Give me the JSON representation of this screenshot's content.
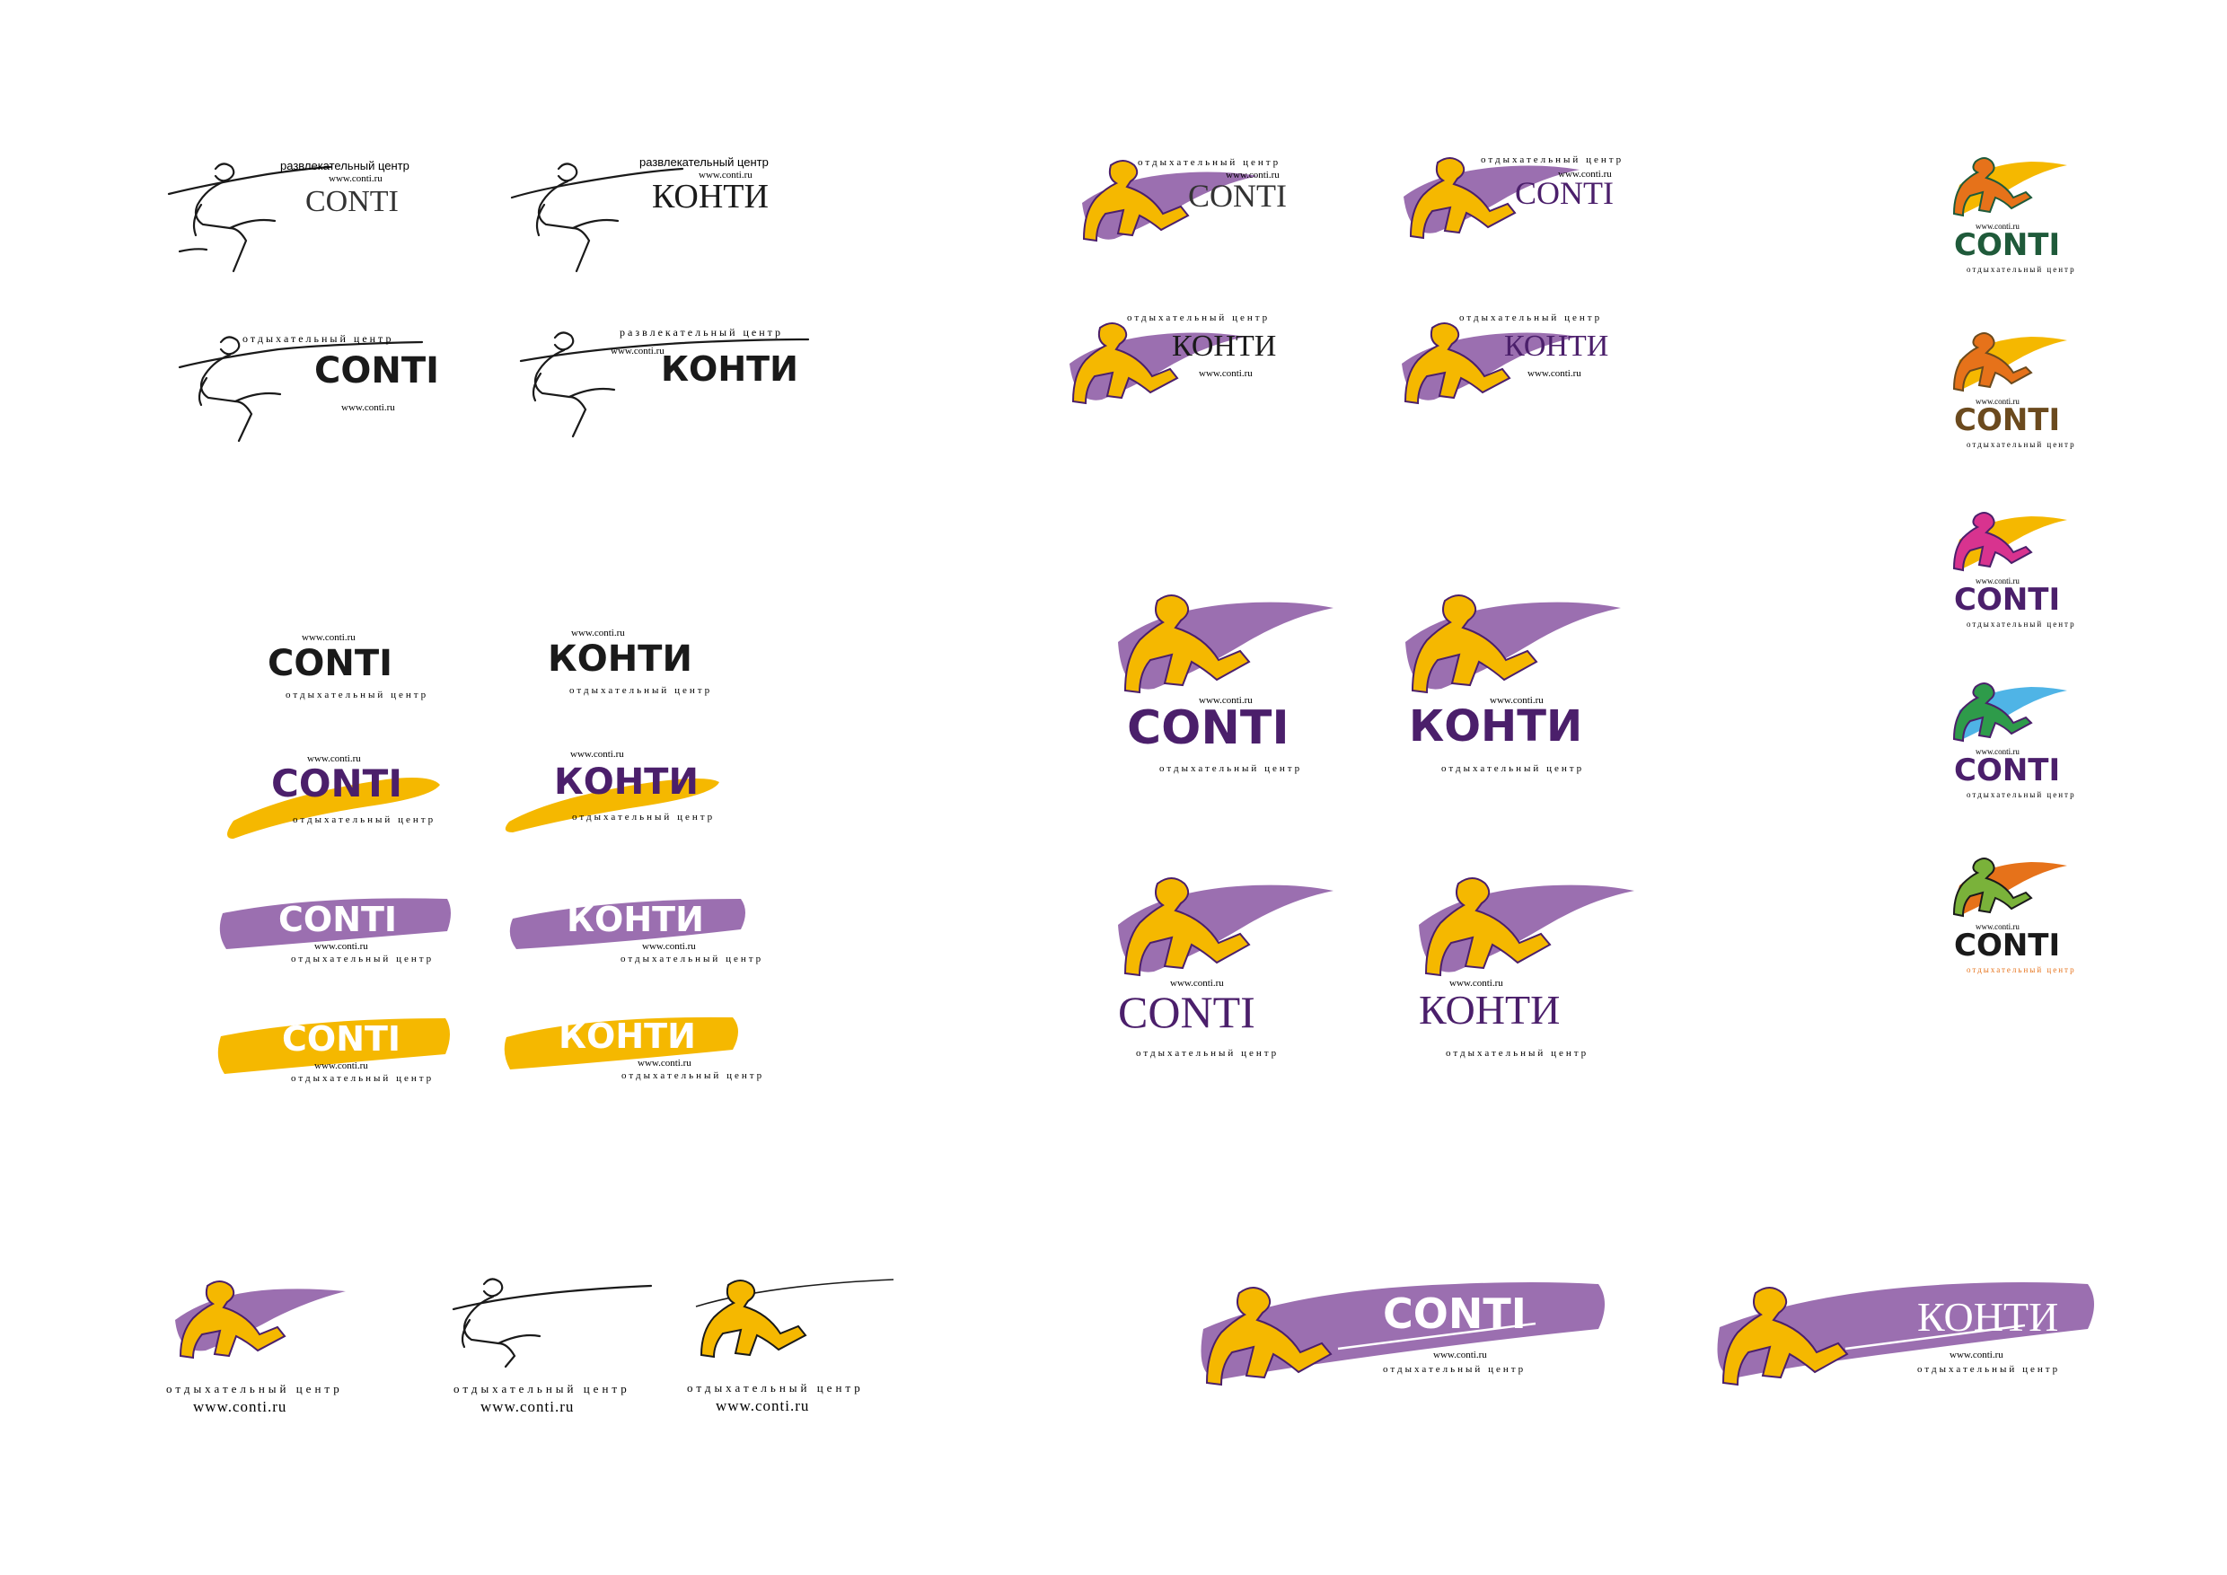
{
  "palette": {
    "black": "#1a1a1a",
    "gray": "#333333",
    "purple": "#4b1f6b",
    "lilac": "#9b6fb0",
    "yellow": "#f5b800",
    "white": "#ffffff",
    "green": "#1f5a3a",
    "brown": "#6b4a1e",
    "magenta": "#b0207a",
    "orange": "#e6721a"
  },
  "texts": {
    "razv": "развлекательный центр",
    "otdyh": "отдыхательный центр",
    "url": "www.conti.ru",
    "conti": "CONTI",
    "konti": "КОНТИ"
  },
  "icons": {
    "outline_figure": "running-man-outline-icon",
    "yellow_figure": "yellow-man-on-purple-stroke-icon"
  }
}
